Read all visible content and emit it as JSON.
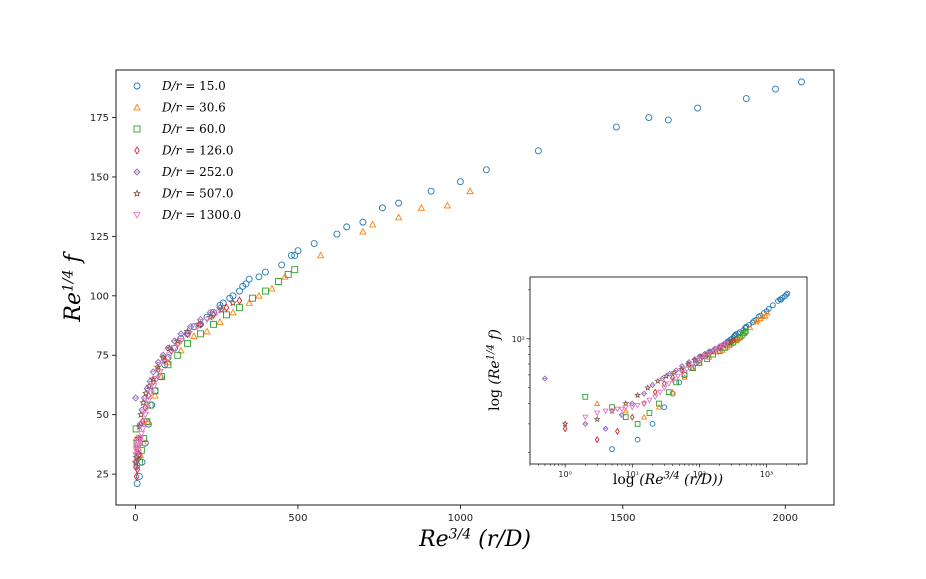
{
  "chart_data": [
    {
      "type": "scatter",
      "title": "",
      "xlabel": "Re^{3/4} (r/D)",
      "ylabel": "Re^{1/4} f",
      "xlabel_parts": {
        "base": "Re",
        "sup": "3/4",
        "rest": " (r/D)"
      },
      "ylabel_parts": {
        "base": "Re",
        "sup": "1/4",
        "rest": " f"
      },
      "xlim": [
        -60,
        2150
      ],
      "ylim": [
        12,
        195
      ],
      "x_ticks": [
        0,
        500,
        1000,
        1500,
        2000
      ],
      "x_tick_labels": [
        "0",
        "500",
        "1000",
        "1500",
        "2000"
      ],
      "y_ticks": [
        25,
        50,
        75,
        100,
        125,
        150,
        175
      ],
      "y_tick_labels": [
        "25",
        "50",
        "75",
        "100",
        "125",
        "150",
        "175"
      ],
      "grid": false,
      "legend_position": "upper-left",
      "series": [
        {
          "name": "D/r = 15.0",
          "label_lhs": "D/r",
          "label_rhs": "15.0",
          "marker": "circle",
          "color": "#1f77b4",
          "x": [
            5,
            12,
            20,
            30,
            40,
            50,
            60,
            75,
            90,
            100,
            120,
            140,
            160,
            180,
            200,
            220,
            240,
            260,
            270,
            290,
            300,
            320,
            330,
            340,
            350,
            380,
            400,
            450,
            480,
            490,
            500,
            550,
            620,
            650,
            700,
            760,
            810,
            910,
            1000,
            1080,
            1240,
            1480,
            1580,
            1640,
            1730,
            1880,
            1970,
            2050
          ],
          "y": [
            21,
            24,
            30,
            38,
            46,
            54,
            60,
            66,
            71,
            74,
            78,
            82,
            84,
            87,
            88,
            91,
            93,
            96,
            97,
            99,
            100,
            102,
            104,
            105,
            107,
            108,
            110,
            113,
            117,
            117,
            119,
            122,
            126,
            129,
            131,
            137,
            139,
            144,
            148,
            153,
            161,
            171,
            175,
            174,
            179,
            183,
            187,
            190
          ]
        },
        {
          "name": "D/r = 30.6",
          "label_lhs": "D/r",
          "label_rhs": "30.6",
          "marker": "triangle-up",
          "color": "#ff7f0e",
          "x": [
            3,
            8,
            15,
            25,
            40,
            60,
            80,
            100,
            140,
            180,
            220,
            260,
            300,
            350,
            380,
            420,
            460,
            570,
            700,
            730,
            810,
            880,
            960,
            1030
          ],
          "y": [
            40,
            36,
            33,
            38,
            47,
            58,
            66,
            72,
            77,
            83,
            85,
            89,
            93,
            97,
            100,
            103,
            108,
            117,
            127,
            130,
            133,
            137,
            138,
            144
          ]
        },
        {
          "name": "D/r = 60.0",
          "label_lhs": "D/r",
          "label_rhs": "60.0",
          "marker": "square",
          "color": "#2ca02c",
          "x": [
            2,
            5,
            8,
            12,
            18,
            25,
            35,
            45,
            60,
            80,
            100,
            130,
            160,
            200,
            240,
            280,
            320,
            360,
            400,
            440,
            470,
            490
          ],
          "y": [
            44,
            38,
            33,
            30,
            35,
            40,
            47,
            54,
            60,
            66,
            71,
            75,
            80,
            84,
            88,
            92,
            95,
            99,
            102,
            106,
            109,
            111
          ]
        },
        {
          "name": "D/r = 126.0",
          "label_lhs": "D/r",
          "label_rhs": "126.0",
          "marker": "diamond",
          "color": "#d62728",
          "x": [
            1,
            3,
            6,
            10,
            15,
            22,
            30,
            40,
            55,
            70,
            90,
            110,
            130,
            160,
            200,
            240,
            280,
            320
          ],
          "y": [
            28,
            24,
            27,
            33,
            40,
            47,
            53,
            58,
            64,
            69,
            73,
            77,
            80,
            84,
            88,
            92,
            95,
            98
          ]
        },
        {
          "name": "D/r = 252.0",
          "label_lhs": "D/r",
          "label_rhs": "252.0",
          "marker": "thin-diamond",
          "color": "#9467bd",
          "x": [
            0.5,
            2,
            4,
            7,
            10,
            15,
            20,
            28,
            36,
            45,
            55,
            70,
            85,
            100,
            120,
            140,
            170,
            200,
            230,
            260
          ],
          "y": [
            57,
            30,
            28,
            34,
            40,
            46,
            52,
            57,
            61,
            64,
            68,
            72,
            75,
            78,
            81,
            84,
            87,
            90,
            93,
            95
          ]
        },
        {
          "name": "D/r = 507.0",
          "label_lhs": "D/r",
          "label_rhs": "507.0",
          "marker": "star",
          "color": "#8c564b",
          "x": [
            1,
            3,
            5,
            8,
            12,
            17,
            24,
            32,
            42,
            54,
            68,
            85,
            105,
            130,
            160,
            195,
            230,
            265,
            300
          ],
          "y": [
            30,
            32,
            36,
            40,
            45,
            50,
            55,
            59,
            62,
            65,
            70,
            74,
            78,
            81,
            85,
            88,
            91,
            94,
            97
          ]
        },
        {
          "name": "D/r = 1300.0",
          "label_lhs": "D/r",
          "label_rhs": "1300.0",
          "marker": "triangle-down",
          "color": "#e377c2",
          "x": [
            2,
            3,
            4,
            5,
            6,
            7,
            8,
            10,
            12,
            15,
            18,
            22,
            26,
            30,
            35,
            40,
            48,
            56,
            65,
            75,
            90,
            105,
            120,
            140,
            165,
            190,
            220,
            250
          ],
          "y": [
            33,
            35,
            36,
            36,
            37,
            37,
            38,
            38,
            39,
            40,
            42,
            44,
            47,
            50,
            53,
            56,
            59,
            62,
            65,
            68,
            72,
            75,
            78,
            81,
            84,
            87,
            90,
            93
          ]
        }
      ]
    },
    {
      "type": "scatter",
      "title": "",
      "xlabel": "log (Re^{3/4} (r/D))",
      "ylabel": "log (Re^{1/4} f)",
      "xlabel_parts": {
        "pre": "log ",
        "base": "(Re",
        "sup": "3/4",
        "rest": " (r/D))"
      },
      "ylabel_parts": {
        "pre": "log ",
        "base": "(Re",
        "sup": "1/4",
        "rest": " f)"
      },
      "x_scale": "log",
      "y_scale": "log",
      "xlim": [
        0.3,
        4000
      ],
      "ylim": [
        17,
        240
      ],
      "x_ticks": [
        1,
        10,
        100,
        1000
      ],
      "x_tick_labels": [
        "10⁰",
        "10¹",
        "10²",
        "10³"
      ],
      "y_ticks": [
        100
      ],
      "y_tick_labels": [
        "10²"
      ],
      "grid": false,
      "reuse_series_from": 0
    }
  ]
}
